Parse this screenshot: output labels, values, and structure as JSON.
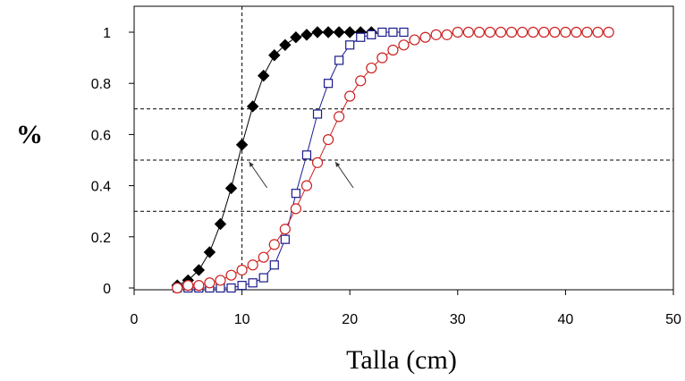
{
  "chart_data": {
    "type": "scatter",
    "title": "",
    "xlabel": "Talla (cm)",
    "ylabel": "%",
    "xlim": [
      0,
      50
    ],
    "ylim": [
      0,
      1.0
    ],
    "xticks": [
      "0",
      "10",
      "20",
      "30",
      "40",
      "50"
    ],
    "yticks": [
      "0",
      "0.2",
      "0.4",
      "0.6",
      "0.8",
      "1"
    ],
    "grid": false,
    "legend": "none",
    "reference_lines": {
      "horizontal": [
        0.3,
        0.5,
        0.7
      ],
      "vertical": [
        10
      ]
    },
    "annotations": [
      {
        "type": "arrow",
        "points_to": [
          10,
          0.5
        ]
      },
      {
        "type": "arrow",
        "points_to": [
          18,
          0.5
        ]
      }
    ],
    "series": [
      {
        "marker": "diamond-filled",
        "color": "#000000",
        "x": [
          4,
          5,
          6,
          7,
          8,
          9,
          10,
          11,
          12,
          13,
          14,
          15,
          16,
          17,
          18,
          19,
          20,
          21,
          22
        ],
        "y": [
          0.01,
          0.03,
          0.07,
          0.14,
          0.25,
          0.39,
          0.56,
          0.71,
          0.83,
          0.91,
          0.95,
          0.98,
          0.99,
          1.0,
          1.0,
          1.0,
          1.0,
          1.0,
          1.0
        ]
      },
      {
        "marker": "square-open",
        "color": "#1a1a8c",
        "x": [
          4,
          5,
          6,
          7,
          8,
          9,
          10,
          11,
          12,
          13,
          14,
          15,
          16,
          17,
          18,
          19,
          20,
          21,
          22,
          23,
          24,
          25
        ],
        "y": [
          0.0,
          0.0,
          0.0,
          0.0,
          0.0,
          0.0,
          0.01,
          0.02,
          0.04,
          0.09,
          0.19,
          0.37,
          0.52,
          0.68,
          0.8,
          0.89,
          0.95,
          0.98,
          0.99,
          1.0,
          1.0,
          1.0
        ]
      },
      {
        "marker": "circle-open",
        "color": "#cc2020",
        "x": [
          4,
          5,
          6,
          7,
          8,
          9,
          10,
          11,
          12,
          13,
          14,
          15,
          16,
          17,
          18,
          19,
          20,
          21,
          22,
          23,
          24,
          25,
          26,
          27,
          28,
          29,
          30,
          31,
          32,
          33,
          34,
          35,
          36,
          37,
          38,
          39,
          40,
          41,
          42,
          43,
          44
        ],
        "y": [
          0.0,
          0.01,
          0.01,
          0.02,
          0.03,
          0.05,
          0.07,
          0.09,
          0.12,
          0.17,
          0.23,
          0.31,
          0.4,
          0.49,
          0.58,
          0.67,
          0.75,
          0.81,
          0.86,
          0.9,
          0.93,
          0.95,
          0.97,
          0.98,
          0.99,
          0.99,
          1.0,
          1.0,
          1.0,
          1.0,
          1.0,
          1.0,
          1.0,
          1.0,
          1.0,
          1.0,
          1.0,
          1.0,
          1.0,
          1.0,
          1.0
        ]
      }
    ]
  }
}
